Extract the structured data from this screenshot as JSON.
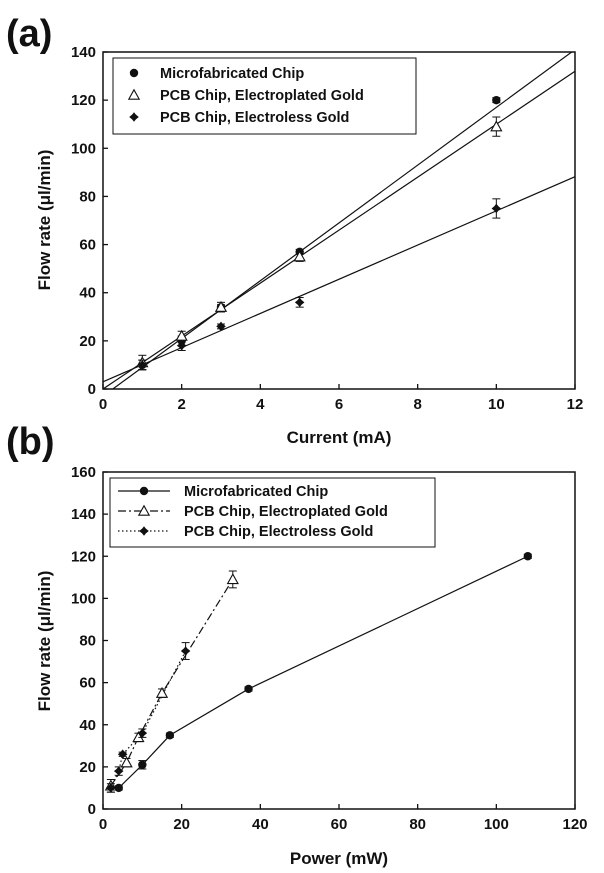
{
  "chart_data": [
    {
      "type": "scatter",
      "panel_label": "(a)",
      "xlabel": "Current (mA)",
      "ylabel": "Flow rate (μl/min)",
      "xlim": [
        0,
        12
      ],
      "ylim": [
        0,
        140
      ],
      "xticks": [
        "0",
        "2",
        "4",
        "6",
        "8",
        "10",
        "12"
      ],
      "yticks": [
        "0",
        "20",
        "40",
        "60",
        "80",
        "100",
        "120",
        "140"
      ],
      "legend_position": "top-left",
      "series": [
        {
          "name": "Microfabricated Chip",
          "marker": "circle",
          "x": [
            1,
            2,
            3,
            5,
            10
          ],
          "y": [
            10,
            20,
            34,
            57,
            120
          ],
          "err": [
            2,
            2,
            1,
            1,
            1
          ],
          "fit": {
            "slope": 12.0,
            "intercept": -3.0
          }
        },
        {
          "name": "PCB Chip, Electroplated Gold",
          "marker": "triangle",
          "x": [
            1,
            2,
            3,
            5,
            10
          ],
          "y": [
            11,
            22,
            34,
            55,
            109
          ],
          "err": [
            3,
            2,
            2,
            2,
            4
          ],
          "fit": {
            "slope": 11.0,
            "intercept": 0.0
          }
        },
        {
          "name": "PCB Chip, Electroless Gold",
          "marker": "filled",
          "x": [
            1,
            2,
            3,
            5,
            10
          ],
          "y": [
            10,
            18,
            26,
            36,
            75
          ],
          "err": [
            2,
            2,
            1,
            2,
            4
          ],
          "fit": {
            "slope": 7.1,
            "intercept": 3.0
          }
        }
      ]
    },
    {
      "type": "line",
      "panel_label": "(b)",
      "xlabel": "Power (mW)",
      "ylabel": "Flow rate (μl/min)",
      "xlim": [
        0,
        120
      ],
      "ylim": [
        0,
        160
      ],
      "xticks": [
        "0",
        "20",
        "40",
        "60",
        "80",
        "100",
        "120"
      ],
      "yticks": [
        "0",
        "20",
        "40",
        "60",
        "80",
        "100",
        "120",
        "140",
        "160"
      ],
      "legend_position": "top-left",
      "series": [
        {
          "name": "Microfabricated Chip",
          "marker": "circle",
          "line": "solid",
          "x": [
            4,
            10,
            17,
            37,
            108
          ],
          "y": [
            10,
            21,
            35,
            57,
            120
          ],
          "err": [
            1,
            2,
            1,
            1,
            1
          ]
        },
        {
          "name": "PCB Chip, Electroplated Gold",
          "marker": "triangle",
          "line": "dashdot",
          "x": [
            2,
            6,
            9,
            15,
            33
          ],
          "y": [
            11,
            22,
            34,
            55,
            109
          ],
          "err": [
            3,
            2,
            2,
            2,
            4
          ]
        },
        {
          "name": "PCB Chip, Electroless Gold",
          "marker": "filled",
          "line": "dotted",
          "x": [
            2,
            4,
            5,
            10,
            21
          ],
          "y": [
            10,
            18,
            26,
            36,
            75
          ],
          "err": [
            2,
            2,
            1,
            2,
            4
          ]
        }
      ]
    }
  ]
}
